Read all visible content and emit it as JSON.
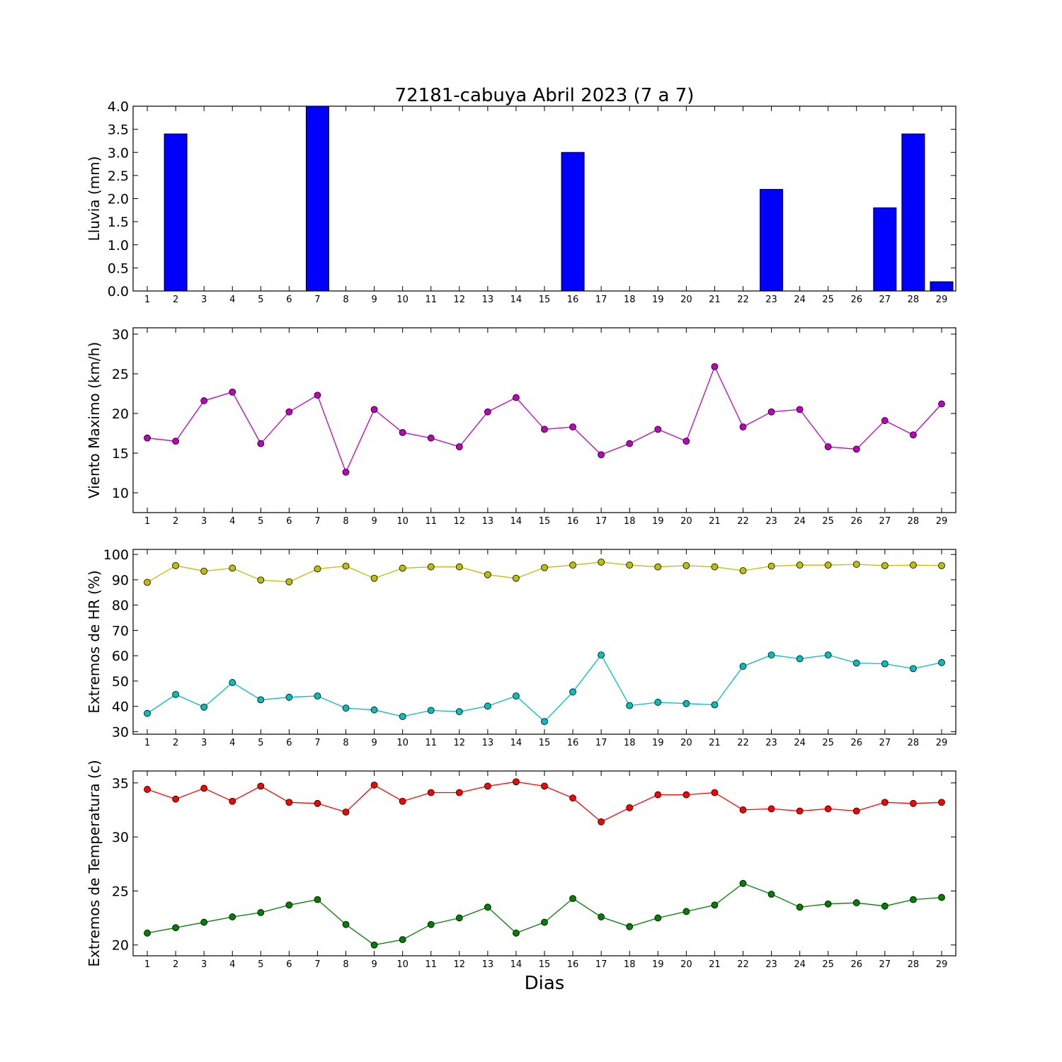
{
  "figure": {
    "title": "72181-cabuya Abril 2023  (7 a 7)",
    "xlabel": "Dias"
  },
  "chart_data": [
    {
      "type": "bar",
      "ylabel": "Lluvia (mm)",
      "x": [
        1,
        2,
        3,
        4,
        5,
        6,
        7,
        8,
        9,
        10,
        11,
        12,
        13,
        14,
        15,
        16,
        17,
        18,
        19,
        20,
        21,
        22,
        23,
        24,
        25,
        26,
        27,
        28,
        29
      ],
      "ylim": [
        0,
        4
      ],
      "yticks": [
        0.0,
        0.5,
        1.0,
        1.5,
        2.0,
        2.5,
        3.0,
        3.5,
        4.0
      ],
      "ytick_labels": [
        "0.0",
        "0.5",
        "1.0",
        "1.5",
        "2.0",
        "2.5",
        "3.0",
        "3.5",
        "4.0"
      ],
      "grid": false,
      "series": [
        {
          "color": "#0000ff",
          "values": [
            0,
            3.4,
            0,
            0,
            0,
            0,
            4.0,
            0,
            0,
            0,
            0,
            0,
            0,
            0,
            0,
            3.0,
            0,
            0,
            0,
            0,
            0,
            0,
            2.2,
            0,
            0,
            0,
            1.8,
            3.4,
            0.2
          ]
        }
      ]
    },
    {
      "type": "line",
      "ylabel": "Viento Maximo (km/h)",
      "x": [
        1,
        2,
        3,
        4,
        5,
        6,
        7,
        8,
        9,
        10,
        11,
        12,
        13,
        14,
        15,
        16,
        17,
        18,
        19,
        20,
        21,
        22,
        23,
        24,
        25,
        26,
        27,
        28,
        29
      ],
      "ylim": [
        7.5,
        30.8
      ],
      "yticks": [
        10,
        15,
        20,
        25,
        30
      ],
      "ytick_labels": [
        "10",
        "15",
        "20",
        "25",
        "30"
      ],
      "grid": false,
      "series": [
        {
          "color": "#bf00bf",
          "values": [
            16.9,
            16.5,
            21.6,
            22.7,
            16.2,
            20.2,
            22.3,
            12.6,
            20.5,
            17.6,
            16.9,
            15.8,
            20.2,
            22.0,
            18.0,
            18.3,
            14.8,
            16.2,
            18.0,
            16.5,
            25.9,
            18.3,
            20.2,
            20.5,
            15.8,
            15.5,
            19.1,
            17.3,
            21.2
          ]
        }
      ]
    },
    {
      "type": "line",
      "ylabel": "Extremos de HR (%)",
      "x": [
        1,
        2,
        3,
        4,
        5,
        6,
        7,
        8,
        9,
        10,
        11,
        12,
        13,
        14,
        15,
        16,
        17,
        18,
        19,
        20,
        21,
        22,
        23,
        24,
        25,
        26,
        27,
        28,
        29
      ],
      "ylim": [
        29,
        102
      ],
      "yticks": [
        30,
        40,
        50,
        60,
        70,
        80,
        90,
        100
      ],
      "ytick_labels": [
        "30",
        "40",
        "50",
        "60",
        "70",
        "80",
        "90",
        "100"
      ],
      "grid": false,
      "series": [
        {
          "color": "#bfbf00",
          "values": [
            89.0,
            95.6,
            93.4,
            94.6,
            89.9,
            89.2,
            94.3,
            95.4,
            90.6,
            94.6,
            95.1,
            95.1,
            92.0,
            90.6,
            94.8,
            95.8,
            97.0,
            95.8,
            95.1,
            95.6,
            95.1,
            93.6,
            95.4,
            95.8,
            95.8,
            96.1,
            95.6,
            95.8,
            95.6
          ]
        },
        {
          "color": "#00bfbf",
          "values": [
            37.2,
            44.7,
            39.7,
            49.4,
            42.6,
            43.6,
            44.1,
            39.3,
            38.6,
            36.0,
            38.4,
            37.9,
            40.1,
            44.1,
            34.0,
            45.7,
            60.3,
            40.3,
            41.6,
            41.1,
            40.6,
            55.8,
            60.3,
            58.8,
            60.3,
            57.1,
            56.8,
            54.9,
            57.3
          ]
        }
      ]
    },
    {
      "type": "line",
      "ylabel": "Extremos de Temperatura (c)",
      "x": [
        1,
        2,
        3,
        4,
        5,
        6,
        7,
        8,
        9,
        10,
        11,
        12,
        13,
        14,
        15,
        16,
        17,
        18,
        19,
        20,
        21,
        22,
        23,
        24,
        25,
        26,
        27,
        28,
        29
      ],
      "ylim": [
        19,
        36.1
      ],
      "yticks": [
        20,
        25,
        30,
        35
      ],
      "ytick_labels": [
        "20",
        "25",
        "30",
        "35"
      ],
      "grid": false,
      "series": [
        {
          "color": "#ff0000",
          "values": [
            34.4,
            33.5,
            34.5,
            33.3,
            34.7,
            33.2,
            33.1,
            32.3,
            34.8,
            33.3,
            34.1,
            34.1,
            34.7,
            35.1,
            34.7,
            33.6,
            31.4,
            32.7,
            33.9,
            33.9,
            34.1,
            32.5,
            32.6,
            32.4,
            32.6,
            32.4,
            33.2,
            33.1,
            33.2
          ]
        },
        {
          "color": "#008000",
          "values": [
            21.1,
            21.6,
            22.1,
            22.6,
            23.0,
            23.7,
            24.2,
            21.9,
            20.0,
            20.5,
            21.9,
            22.5,
            23.5,
            21.1,
            22.1,
            24.3,
            22.6,
            21.7,
            22.5,
            23.1,
            23.7,
            25.7,
            24.7,
            23.5,
            23.8,
            23.9,
            23.6,
            24.2,
            24.4
          ]
        }
      ]
    }
  ]
}
